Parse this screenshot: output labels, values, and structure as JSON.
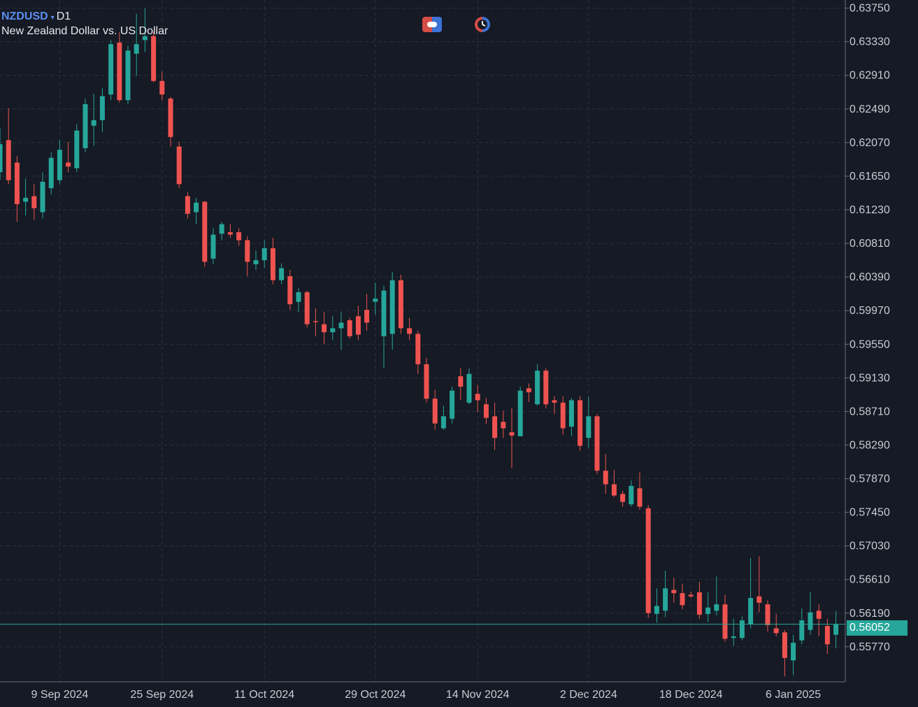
{
  "header": {
    "symbol": "NZDUSD",
    "dropdown_arrow": "▾",
    "timeframe": "D1",
    "description": "New Zealand Dollar vs. US Dollar"
  },
  "toolbar": {
    "icons": [
      "trade-toggle-icon",
      "clock-indicator-icon"
    ]
  },
  "colors": {
    "background": "#151a24",
    "bull": "#26a69a",
    "bear": "#ef5350",
    "grid": "#2a3140",
    "price_line": "#26a69a",
    "axis_text": "#c7ccd4"
  },
  "chart_data": {
    "type": "candlestick",
    "symbol": "NZDUSD",
    "timeframe": "D1",
    "current_price": 0.56052,
    "current_price_label": "0.56052",
    "y_ticks": [
      "0.63750",
      "0.63330",
      "0.62910",
      "0.62490",
      "0.62070",
      "0.61650",
      "0.61230",
      "0.60810",
      "0.60390",
      "0.59970",
      "0.59550",
      "0.59130",
      "0.58710",
      "0.58290",
      "0.57870",
      "0.57450",
      "0.57030",
      "0.56610",
      "0.56190",
      "0.55770"
    ],
    "ylim": [
      0.5534,
      0.6388
    ],
    "x_labels": [
      "9 Sep 2024",
      "25 Sep 2024",
      "11 Oct 2024",
      "29 Oct 2024",
      "14 Nov 2024",
      "2 Dec 2024",
      "18 Dec 2024",
      "6 Jan 2025"
    ],
    "grid": true,
    "candles": [
      {
        "o": 0.617,
        "h": 0.6225,
        "l": 0.616,
        "c": 0.6205
      },
      {
        "o": 0.621,
        "h": 0.625,
        "l": 0.6155,
        "c": 0.616
      },
      {
        "o": 0.6182,
        "h": 0.619,
        "l": 0.6108,
        "c": 0.613
      },
      {
        "o": 0.6133,
        "h": 0.6162,
        "l": 0.6116,
        "c": 0.6138
      },
      {
        "o": 0.614,
        "h": 0.6155,
        "l": 0.611,
        "c": 0.6125
      },
      {
        "o": 0.612,
        "h": 0.617,
        "l": 0.6112,
        "c": 0.6158
      },
      {
        "o": 0.615,
        "h": 0.6195,
        "l": 0.6142,
        "c": 0.6188
      },
      {
        "o": 0.616,
        "h": 0.621,
        "l": 0.6155,
        "c": 0.6198
      },
      {
        "o": 0.6182,
        "h": 0.6208,
        "l": 0.617,
        "c": 0.6177
      },
      {
        "o": 0.6175,
        "h": 0.623,
        "l": 0.617,
        "c": 0.6222
      },
      {
        "o": 0.62,
        "h": 0.6262,
        "l": 0.6195,
        "c": 0.6255
      },
      {
        "o": 0.6228,
        "h": 0.6268,
        "l": 0.6203,
        "c": 0.6235
      },
      {
        "o": 0.6235,
        "h": 0.6275,
        "l": 0.622,
        "c": 0.6265
      },
      {
        "o": 0.6267,
        "h": 0.6335,
        "l": 0.626,
        "c": 0.633
      },
      {
        "o": 0.6332,
        "h": 0.6345,
        "l": 0.6257,
        "c": 0.626
      },
      {
        "o": 0.626,
        "h": 0.6328,
        "l": 0.6255,
        "c": 0.6322
      },
      {
        "o": 0.6318,
        "h": 0.6368,
        "l": 0.629,
        "c": 0.633
      },
      {
        "o": 0.6335,
        "h": 0.6375,
        "l": 0.632,
        "c": 0.634
      },
      {
        "o": 0.634,
        "h": 0.6346,
        "l": 0.6282,
        "c": 0.6284
      },
      {
        "o": 0.6284,
        "h": 0.6296,
        "l": 0.626,
        "c": 0.6267
      },
      {
        "o": 0.6262,
        "h": 0.6264,
        "l": 0.6202,
        "c": 0.6214
      },
      {
        "o": 0.6202,
        "h": 0.6208,
        "l": 0.615,
        "c": 0.6155
      },
      {
        "o": 0.614,
        "h": 0.6145,
        "l": 0.6112,
        "c": 0.6118
      },
      {
        "o": 0.612,
        "h": 0.6138,
        "l": 0.6105,
        "c": 0.6132
      },
      {
        "o": 0.6133,
        "h": 0.6134,
        "l": 0.6052,
        "c": 0.6058
      },
      {
        "o": 0.6062,
        "h": 0.61,
        "l": 0.6055,
        "c": 0.6092
      },
      {
        "o": 0.6093,
        "h": 0.6108,
        "l": 0.6085,
        "c": 0.6105
      },
      {
        "o": 0.6095,
        "h": 0.6105,
        "l": 0.6088,
        "c": 0.6092
      },
      {
        "o": 0.6095,
        "h": 0.61,
        "l": 0.6078,
        "c": 0.6085
      },
      {
        "o": 0.6085,
        "h": 0.609,
        "l": 0.604,
        "c": 0.6058
      },
      {
        "o": 0.6055,
        "h": 0.6072,
        "l": 0.6048,
        "c": 0.606
      },
      {
        "o": 0.606,
        "h": 0.6085,
        "l": 0.605,
        "c": 0.6075
      },
      {
        "o": 0.6075,
        "h": 0.6088,
        "l": 0.603,
        "c": 0.6035
      },
      {
        "o": 0.6035,
        "h": 0.6056,
        "l": 0.603,
        "c": 0.605
      },
      {
        "o": 0.604,
        "h": 0.6048,
        "l": 0.5998,
        "c": 0.6005
      },
      {
        "o": 0.6008,
        "h": 0.6025,
        "l": 0.5995,
        "c": 0.602
      },
      {
        "o": 0.602,
        "h": 0.6022,
        "l": 0.5976,
        "c": 0.598
      },
      {
        "o": 0.5984,
        "h": 0.6,
        "l": 0.5965,
        "c": 0.5983
      },
      {
        "o": 0.598,
        "h": 0.5995,
        "l": 0.5955,
        "c": 0.597
      },
      {
        "o": 0.597,
        "h": 0.599,
        "l": 0.596,
        "c": 0.5975
      },
      {
        "o": 0.5975,
        "h": 0.5995,
        "l": 0.5948,
        "c": 0.5982
      },
      {
        "o": 0.5985,
        "h": 0.5988,
        "l": 0.5962,
        "c": 0.5965
      },
      {
        "o": 0.599,
        "h": 0.6003,
        "l": 0.596,
        "c": 0.5967
      },
      {
        "o": 0.5998,
        "h": 0.6018,
        "l": 0.5972,
        "c": 0.5982
      },
      {
        "o": 0.6008,
        "h": 0.6032,
        "l": 0.5992,
        "c": 0.6012
      },
      {
        "o": 0.5965,
        "h": 0.6028,
        "l": 0.5925,
        "c": 0.6022
      },
      {
        "o": 0.5968,
        "h": 0.6045,
        "l": 0.5948,
        "c": 0.6035
      },
      {
        "o": 0.6035,
        "h": 0.6042,
        "l": 0.5968,
        "c": 0.5975
      },
      {
        "o": 0.5975,
        "h": 0.5988,
        "l": 0.596,
        "c": 0.5968
      },
      {
        "o": 0.5968,
        "h": 0.5972,
        "l": 0.5918,
        "c": 0.593
      },
      {
        "o": 0.593,
        "h": 0.5938,
        "l": 0.5882,
        "c": 0.5887
      },
      {
        "o": 0.5887,
        "h": 0.5898,
        "l": 0.5848,
        "c": 0.5856
      },
      {
        "o": 0.585,
        "h": 0.5878,
        "l": 0.5848,
        "c": 0.5865
      },
      {
        "o": 0.5862,
        "h": 0.5902,
        "l": 0.5856,
        "c": 0.5897
      },
      {
        "o": 0.5915,
        "h": 0.5925,
        "l": 0.5885,
        "c": 0.5902
      },
      {
        "o": 0.5882,
        "h": 0.5925,
        "l": 0.588,
        "c": 0.5918
      },
      {
        "o": 0.5893,
        "h": 0.5904,
        "l": 0.587,
        "c": 0.5885
      },
      {
        "o": 0.588,
        "h": 0.5888,
        "l": 0.5855,
        "c": 0.5863
      },
      {
        "o": 0.5865,
        "h": 0.5882,
        "l": 0.5823,
        "c": 0.5838
      },
      {
        "o": 0.5858,
        "h": 0.5872,
        "l": 0.5838,
        "c": 0.585
      },
      {
        "o": 0.5845,
        "h": 0.5875,
        "l": 0.58,
        "c": 0.5841
      },
      {
        "o": 0.584,
        "h": 0.5902,
        "l": 0.584,
        "c": 0.5897
      },
      {
        "o": 0.59,
        "h": 0.5906,
        "l": 0.5883,
        "c": 0.5895
      },
      {
        "o": 0.588,
        "h": 0.593,
        "l": 0.5878,
        "c": 0.5922
      },
      {
        "o": 0.5922,
        "h": 0.5925,
        "l": 0.5875,
        "c": 0.588
      },
      {
        "o": 0.5885,
        "h": 0.589,
        "l": 0.5868,
        "c": 0.5882
      },
      {
        "o": 0.5882,
        "h": 0.589,
        "l": 0.5842,
        "c": 0.585
      },
      {
        "o": 0.5852,
        "h": 0.5888,
        "l": 0.584,
        "c": 0.5885
      },
      {
        "o": 0.5885,
        "h": 0.589,
        "l": 0.5822,
        "c": 0.5828
      },
      {
        "o": 0.5838,
        "h": 0.589,
        "l": 0.5825,
        "c": 0.5865
      },
      {
        "o": 0.5865,
        "h": 0.5868,
        "l": 0.5793,
        "c": 0.5797
      },
      {
        "o": 0.5797,
        "h": 0.5818,
        "l": 0.5768,
        "c": 0.578
      },
      {
        "o": 0.578,
        "h": 0.5798,
        "l": 0.5764,
        "c": 0.5766
      },
      {
        "o": 0.5768,
        "h": 0.5772,
        "l": 0.5752,
        "c": 0.5758
      },
      {
        "o": 0.5755,
        "h": 0.5785,
        "l": 0.5752,
        "c": 0.5778
      },
      {
        "o": 0.5775,
        "h": 0.5795,
        "l": 0.5748,
        "c": 0.5752
      },
      {
        "o": 0.575,
        "h": 0.5754,
        "l": 0.5613,
        "c": 0.5619
      },
      {
        "o": 0.5618,
        "h": 0.565,
        "l": 0.5607,
        "c": 0.5628
      },
      {
        "o": 0.5622,
        "h": 0.5672,
        "l": 0.5614,
        "c": 0.565
      },
      {
        "o": 0.5648,
        "h": 0.5663,
        "l": 0.5632,
        "c": 0.5644
      },
      {
        "o": 0.5644,
        "h": 0.5656,
        "l": 0.5624,
        "c": 0.5629
      },
      {
        "o": 0.5642,
        "h": 0.5646,
        "l": 0.5638,
        "c": 0.564
      },
      {
        "o": 0.5645,
        "h": 0.5658,
        "l": 0.5612,
        "c": 0.5617
      },
      {
        "o": 0.5618,
        "h": 0.5645,
        "l": 0.5608,
        "c": 0.5626
      },
      {
        "o": 0.5622,
        "h": 0.5665,
        "l": 0.5616,
        "c": 0.563
      },
      {
        "o": 0.563,
        "h": 0.5642,
        "l": 0.5583,
        "c": 0.5587
      },
      {
        "o": 0.5588,
        "h": 0.5612,
        "l": 0.5578,
        "c": 0.559
      },
      {
        "o": 0.5588,
        "h": 0.5615,
        "l": 0.5585,
        "c": 0.561
      },
      {
        "o": 0.5605,
        "h": 0.5688,
        "l": 0.56,
        "c": 0.5638
      },
      {
        "o": 0.564,
        "h": 0.569,
        "l": 0.562,
        "c": 0.5632
      },
      {
        "o": 0.563,
        "h": 0.5635,
        "l": 0.5596,
        "c": 0.5604
      },
      {
        "o": 0.56,
        "h": 0.5618,
        "l": 0.559,
        "c": 0.5594
      },
      {
        "o": 0.5595,
        "h": 0.5598,
        "l": 0.554,
        "c": 0.5563
      },
      {
        "o": 0.556,
        "h": 0.5592,
        "l": 0.5542,
        "c": 0.5582
      },
      {
        "o": 0.5585,
        "h": 0.5625,
        "l": 0.558,
        "c": 0.561
      },
      {
        "o": 0.5598,
        "h": 0.5645,
        "l": 0.5592,
        "c": 0.562
      },
      {
        "o": 0.5622,
        "h": 0.563,
        "l": 0.559,
        "c": 0.5612
      },
      {
        "o": 0.5603,
        "h": 0.5612,
        "l": 0.5568,
        "c": 0.558
      },
      {
        "o": 0.5592,
        "h": 0.5622,
        "l": 0.5575,
        "c": 0.5605
      }
    ]
  }
}
